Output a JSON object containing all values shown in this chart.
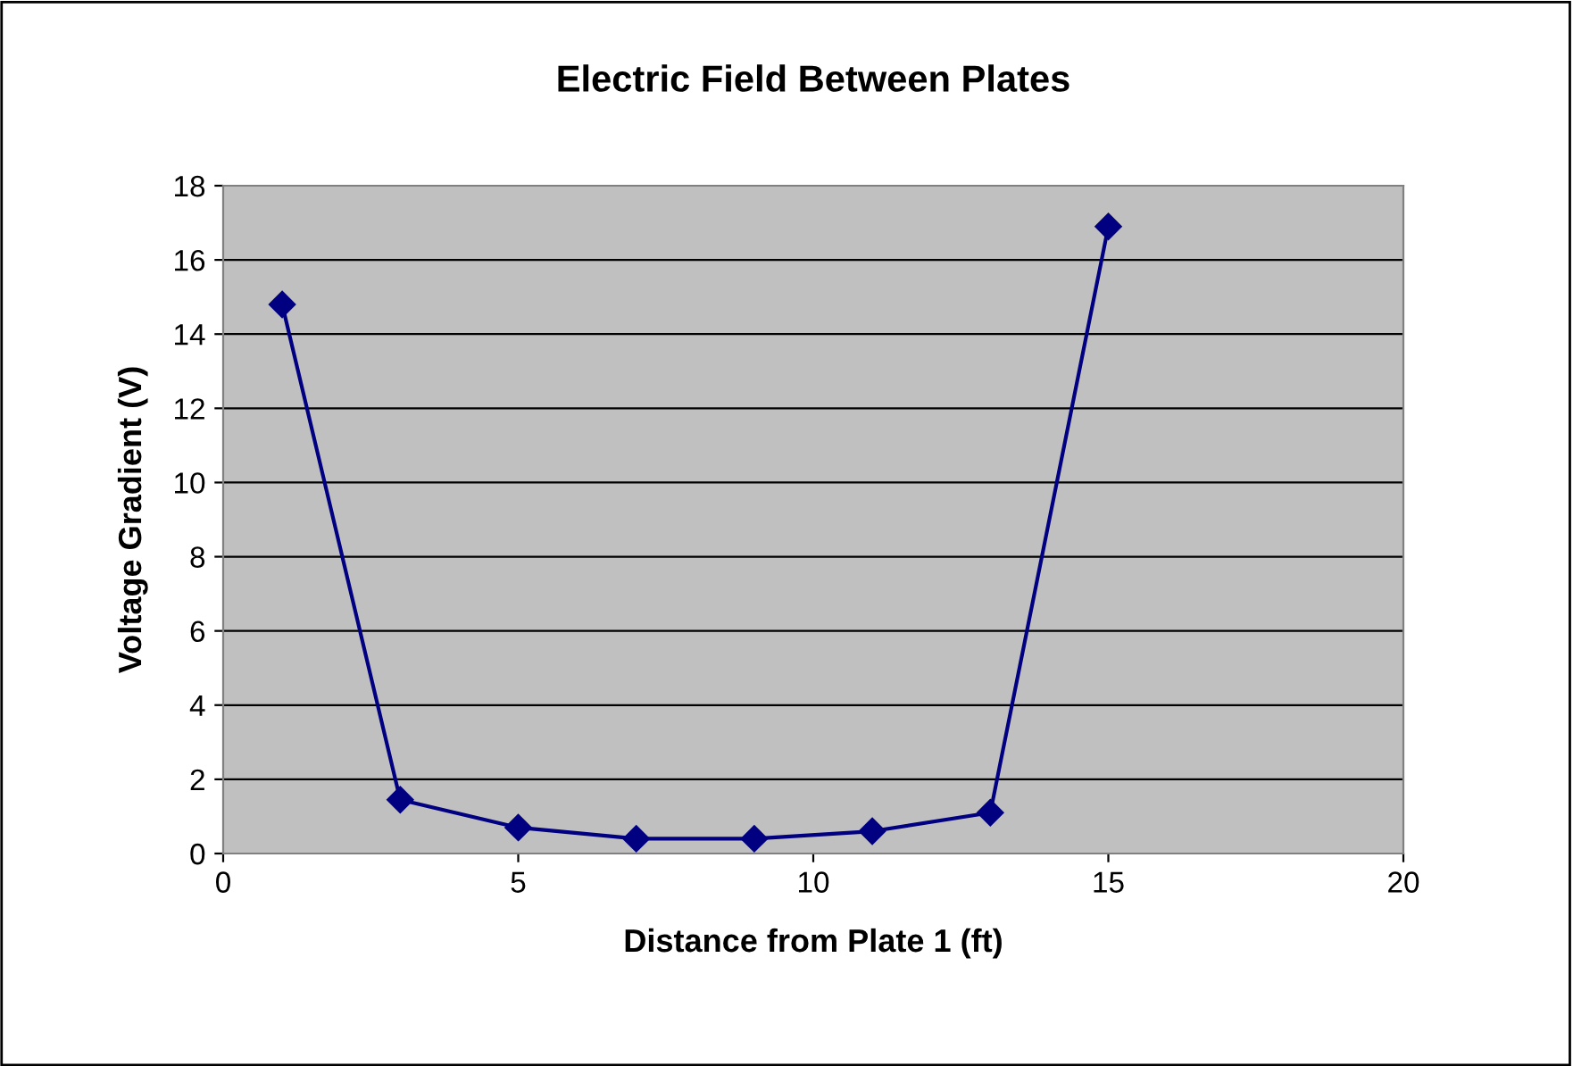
{
  "chart_data": {
    "type": "line",
    "title": "Electric Field Between Plates",
    "xlabel": "Distance from Plate 1 (ft)",
    "ylabel": "Voltage Gradient (V)",
    "x": [
      1,
      3,
      5,
      7,
      9,
      11,
      13,
      15
    ],
    "series": [
      {
        "color": "#000080",
        "values": [
          14.8,
          1.45,
          0.7,
          0.4,
          0.4,
          0.6,
          1.1,
          16.9
        ]
      }
    ],
    "xlim": [
      0,
      20
    ],
    "xticks": [
      0,
      5,
      10,
      15,
      20
    ],
    "ylim": [
      0,
      18
    ],
    "yticks": [
      0,
      2,
      4,
      6,
      8,
      10,
      12,
      14,
      16,
      18
    ],
    "grid": "y",
    "marker": "diamond",
    "line_style": "solid"
  }
}
